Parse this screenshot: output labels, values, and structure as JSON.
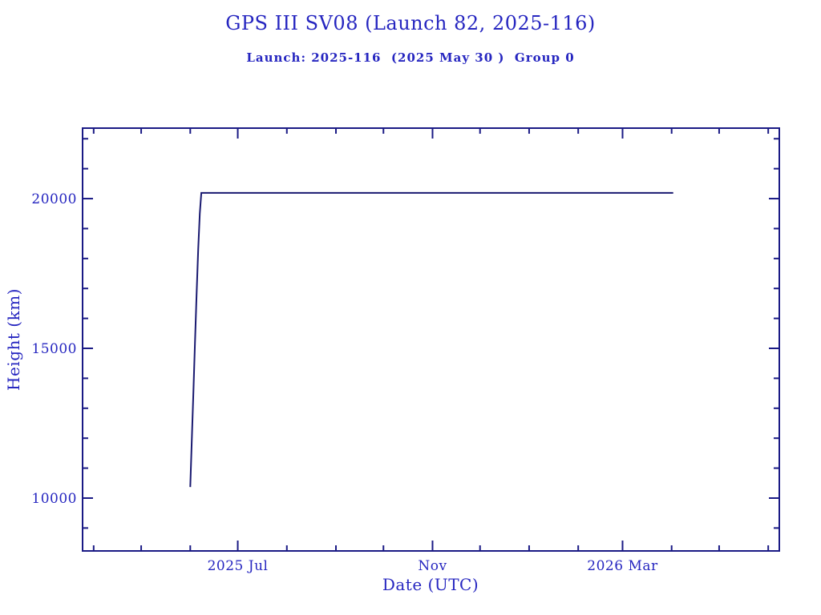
{
  "colors": {
    "text": "#2626c0",
    "axis": "#1a1a85",
    "line": "#191970",
    "background": "#ffffff"
  },
  "chart_data": {
    "type": "line",
    "title": "GPS III SV08 (Launch 82, 2025-116)",
    "subtitle": "Launch: 2025-116  (2025 May 30 )  Group 0",
    "xlabel": "Date (UTC)",
    "ylabel": "Height (km)",
    "x_range": [
      "2025-03-25",
      "2026-06-08"
    ],
    "y_range": [
      8235,
      22354
    ],
    "x_major_ticks": [
      {
        "date": "2025-07-01",
        "label": "2025 Jul"
      },
      {
        "date": "2025-11-01",
        "label": "Nov"
      },
      {
        "date": "2026-03-01",
        "label": "2026 Mar"
      }
    ],
    "x_minor_ticks": [
      "2025-04-01",
      "2025-05-01",
      "2025-06-01",
      "2025-08-01",
      "2025-09-01",
      "2025-10-01",
      "2025-12-01",
      "2026-01-01",
      "2026-02-01",
      "2026-04-01",
      "2026-05-01",
      "2026-06-01"
    ],
    "y_major_ticks": [
      {
        "value": 10000,
        "label": "10000"
      },
      {
        "value": 15000,
        "label": "15000"
      },
      {
        "value": 20000,
        "label": "20000"
      }
    ],
    "y_minor_ticks": [
      9000,
      11000,
      12000,
      13000,
      14000,
      16000,
      17000,
      18000,
      19000,
      21000,
      22000
    ],
    "grid": false,
    "legend": false,
    "series": [
      {
        "name": "height",
        "points": [
          [
            "2025-06-01",
            10370
          ],
          [
            "2025-06-02",
            12000
          ],
          [
            "2025-06-03",
            13600
          ],
          [
            "2025-06-04",
            15200
          ],
          [
            "2025-06-05",
            16800
          ],
          [
            "2025-06-06",
            18300
          ],
          [
            "2025-06-07",
            19500
          ],
          [
            "2025-06-08",
            20190
          ],
          [
            "2026-04-02",
            20190
          ]
        ]
      }
    ]
  }
}
